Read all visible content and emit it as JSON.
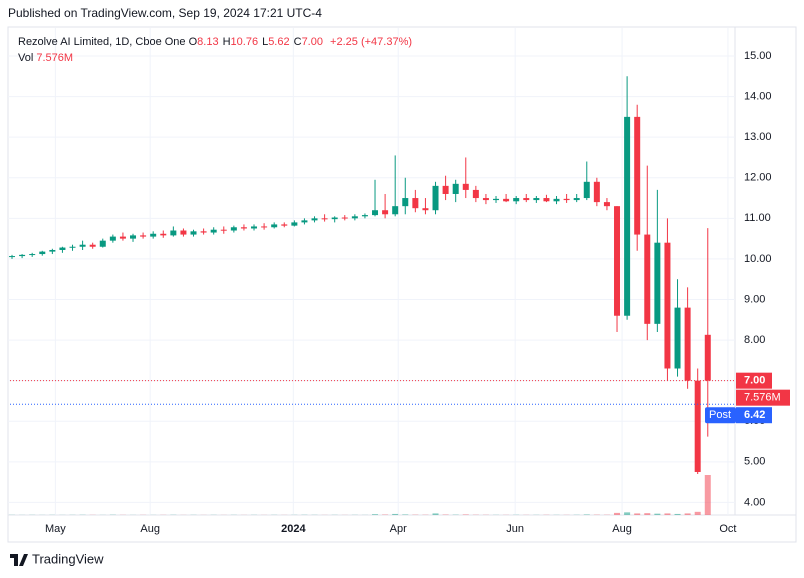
{
  "published": "Published on TradingView.com, Sep 19, 2024 17:21 UTC-4",
  "brand": "TradingView",
  "legend": {
    "symbol": "Rezolve AI Limited, 1D, Cboe One",
    "fields": [
      [
        "O",
        "8.13"
      ],
      [
        "H",
        "10.76"
      ],
      [
        "L",
        "5.62"
      ],
      [
        "C",
        "7.00"
      ]
    ],
    "change": "+2.25",
    "change_pct": "(+47.37%)",
    "vol_title": "Vol",
    "vol_value": "7.576M"
  },
  "chart_data": {
    "type": "candlestick",
    "up_color": "#089981",
    "down_color": "#f23645",
    "grid": true,
    "xlim": [
      -0.2,
      71.7
    ],
    "xticks": [
      {
        "value": 4.3,
        "label": "May"
      },
      {
        "value": 13.7,
        "label": "Aug"
      },
      {
        "value": 27.9,
        "label": "2024"
      },
      {
        "value": 38.3,
        "label": "Apr"
      },
      {
        "value": 49.9,
        "label": "Jun"
      },
      {
        "value": 60.5,
        "label": "Aug"
      },
      {
        "value": 71,
        "label": "Oct"
      }
    ],
    "ylim": [
      3.69,
      15.69
    ],
    "yticks": [
      {
        "value": 4,
        "label": "4.00"
      },
      {
        "value": 5,
        "label": "5.00"
      },
      {
        "value": 6,
        "label": "6.00"
      },
      {
        "value": 7,
        "label": "7.00"
      },
      {
        "value": 8,
        "label": "8.00"
      },
      {
        "value": 9,
        "label": "9.00"
      },
      {
        "value": 10,
        "label": "10.00"
      },
      {
        "value": 11,
        "label": "11.00"
      },
      {
        "value": 12,
        "label": "12.00"
      },
      {
        "value": 13,
        "label": "13.00"
      },
      {
        "value": 14,
        "label": "14.00"
      },
      {
        "value": 15,
        "label": "15.00"
      }
    ],
    "open": [
      10.05,
      10.07,
      10.1,
      10.12,
      10.18,
      10.22,
      10.28,
      10.3,
      10.35,
      10.3,
      10.45,
      10.55,
      10.5,
      10.58,
      10.55,
      10.62,
      10.58,
      10.7,
      10.6,
      10.68,
      10.65,
      10.72,
      10.7,
      10.78,
      10.75,
      10.8,
      10.78,
      10.85,
      10.82,
      10.9,
      10.95,
      11.0,
      10.98,
      11.02,
      11.0,
      11.05,
      11.08,
      11.2,
      11.1,
      11.3,
      11.5,
      11.25,
      11.2,
      11.8,
      11.6,
      11.85,
      11.7,
      11.5,
      11.45,
      11.48,
      11.42,
      11.5,
      11.45,
      11.5,
      11.42,
      11.48,
      11.45,
      11.5,
      11.9,
      11.4,
      11.3,
      8.6,
      13.5,
      10.6,
      8.4,
      10.4,
      7.3,
      8.8,
      7.0,
      8.13
    ],
    "high": [
      10.1,
      10.12,
      10.15,
      10.2,
      10.25,
      10.3,
      10.35,
      10.45,
      10.4,
      10.5,
      10.6,
      10.65,
      10.62,
      10.65,
      10.68,
      10.7,
      10.8,
      10.75,
      10.72,
      10.75,
      10.78,
      10.8,
      10.82,
      10.85,
      10.85,
      10.88,
      10.9,
      10.9,
      10.95,
      11.0,
      11.05,
      11.1,
      11.05,
      11.08,
      11.1,
      11.12,
      11.95,
      11.6,
      12.55,
      12.0,
      11.7,
      11.5,
      11.9,
      12.05,
      11.95,
      12.5,
      11.8,
      11.6,
      11.55,
      11.6,
      11.55,
      11.6,
      11.55,
      11.58,
      11.55,
      11.6,
      11.6,
      12.4,
      12.0,
      11.5,
      11.3,
      14.5,
      13.8,
      12.3,
      11.7,
      11.0,
      9.5,
      9.3,
      7.3,
      10.76
    ],
    "low": [
      10.0,
      10.02,
      10.05,
      10.08,
      10.12,
      10.15,
      10.2,
      10.22,
      10.25,
      10.28,
      10.4,
      10.45,
      10.42,
      10.5,
      10.5,
      10.52,
      10.55,
      10.55,
      10.55,
      10.6,
      10.6,
      10.62,
      10.65,
      10.7,
      10.7,
      10.72,
      10.75,
      10.78,
      10.8,
      10.85,
      10.9,
      10.92,
      10.9,
      10.95,
      10.95,
      11.0,
      11.05,
      11.0,
      11.05,
      11.1,
      11.15,
      11.1,
      11.1,
      11.45,
      11.4,
      11.5,
      11.4,
      11.35,
      11.38,
      11.4,
      11.35,
      11.4,
      11.38,
      11.4,
      11.35,
      11.38,
      11.4,
      11.45,
      11.3,
      11.2,
      8.2,
      8.5,
      10.2,
      8.0,
      8.2,
      7.0,
      7.1,
      6.8,
      4.7,
      5.62
    ],
    "close": [
      10.07,
      10.1,
      10.12,
      10.18,
      10.22,
      10.28,
      10.3,
      10.35,
      10.3,
      10.45,
      10.55,
      10.5,
      10.58,
      10.55,
      10.62,
      10.58,
      10.7,
      10.6,
      10.68,
      10.65,
      10.72,
      10.7,
      10.78,
      10.75,
      10.8,
      10.78,
      10.85,
      10.82,
      10.9,
      10.95,
      11.0,
      10.98,
      11.02,
      11.0,
      11.05,
      11.08,
      11.2,
      11.1,
      11.3,
      11.5,
      11.25,
      11.2,
      11.8,
      11.6,
      11.85,
      11.7,
      11.5,
      11.45,
      11.48,
      11.42,
      11.5,
      11.45,
      11.5,
      11.42,
      11.48,
      11.45,
      11.5,
      11.9,
      11.4,
      11.3,
      8.6,
      13.5,
      10.6,
      8.4,
      10.4,
      7.3,
      8.8,
      7.0,
      4.75,
      7.0
    ],
    "volume": [
      0.03,
      0.02,
      0.03,
      0.02,
      0.03,
      0.02,
      0.03,
      0.04,
      0.03,
      0.02,
      0.05,
      0.03,
      0.02,
      0.03,
      0.02,
      0.03,
      0.04,
      0.02,
      0.03,
      0.02,
      0.03,
      0.02,
      0.03,
      0.02,
      0.03,
      0.02,
      0.03,
      0.02,
      0.03,
      0.04,
      0.03,
      0.02,
      0.03,
      0.02,
      0.03,
      0.02,
      0.15,
      0.08,
      0.2,
      0.1,
      0.06,
      0.05,
      0.3,
      0.08,
      0.06,
      0.1,
      0.05,
      0.04,
      0.03,
      0.03,
      0.04,
      0.03,
      0.03,
      0.04,
      0.03,
      0.03,
      0.04,
      0.1,
      0.06,
      0.05,
      0.4,
      0.5,
      0.3,
      0.35,
      0.25,
      0.3,
      0.2,
      0.3,
      0.6,
      7.576
    ],
    "last_price": {
      "value": 7,
      "label": "7.00"
    },
    "volume_tag": "7.576M",
    "post_price": {
      "value": 6.42,
      "label": "6.42"
    },
    "post_title": "Post"
  }
}
